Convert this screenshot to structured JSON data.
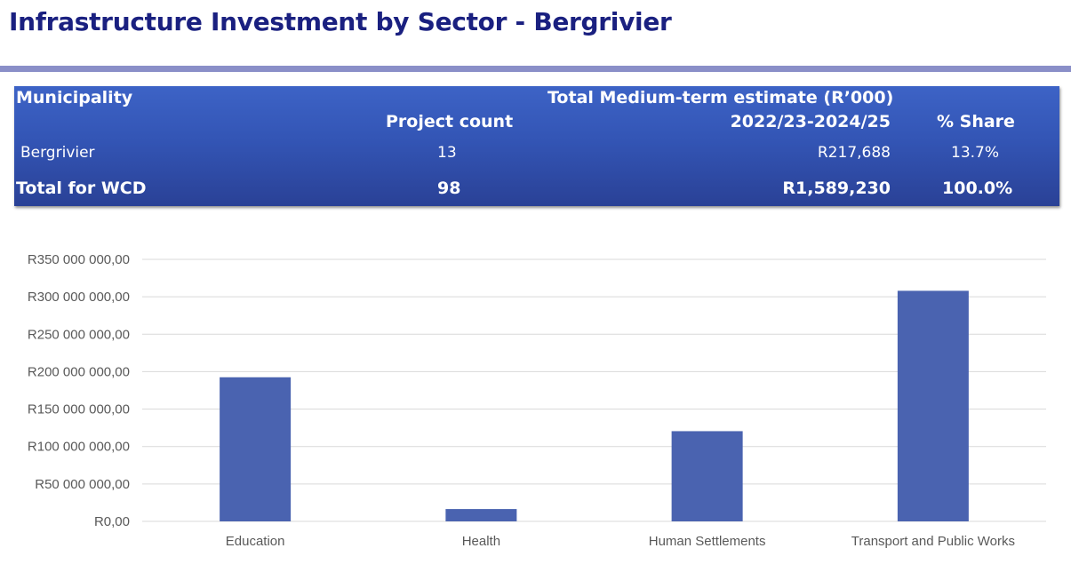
{
  "page": {
    "title": "Infrastructure Investment by Sector - Bergrivier"
  },
  "table": {
    "header": {
      "municipality": "Municipality",
      "estimate_group": "Total Medium-term estimate (R’000)",
      "project_count": "Project count",
      "period": "2022/23-2024/25",
      "share": "% Share"
    },
    "rows": [
      {
        "municipality": "Bergrivier",
        "project_count": "13",
        "estimate": "R217,688",
        "share": "13.7%"
      }
    ],
    "total": {
      "label": "Total for WCD",
      "project_count": "98",
      "estimate": "R1,589,230",
      "share": "100.0%"
    }
  },
  "colors": {
    "title": "#1a2080",
    "rule": "#8a8fc8",
    "table_background": "#3355b5",
    "bar": "#4a63b0",
    "gridline": "#d9d9d9",
    "axis_text": "#595959"
  },
  "chart_data": {
    "type": "bar",
    "title": "",
    "xlabel": "",
    "ylabel": "",
    "categories": [
      "Education",
      "Health",
      "Human Settlements",
      "Transport and Public Works"
    ],
    "values": [
      192500000,
      16500000,
      120500000,
      308000000
    ],
    "ylim": [
      0,
      350000000
    ],
    "yticks": [
      0,
      50000000,
      100000000,
      150000000,
      200000000,
      250000000,
      300000000,
      350000000
    ],
    "ytick_labels": [
      "R0,00",
      "R50 000 000,00",
      "R100 000 000,00",
      "R150 000 000,00",
      "R200 000 000,00",
      "R250 000 000,00",
      "R300 000 000,00",
      "R350 000 000,00"
    ],
    "grid": true,
    "legend": "none"
  }
}
